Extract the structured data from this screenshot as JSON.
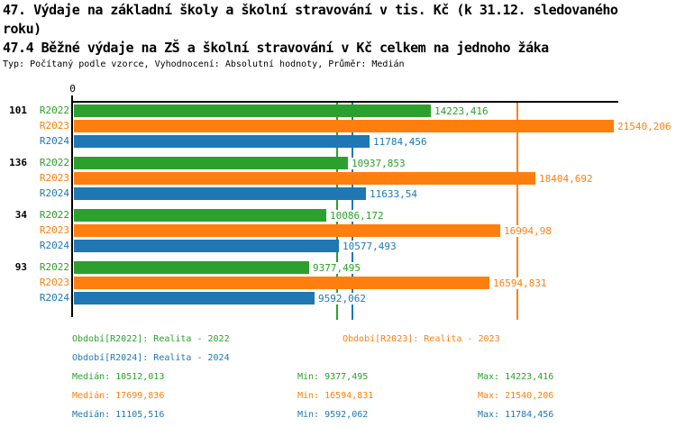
{
  "chart_data": {
    "type": "bar",
    "orientation": "horizontal",
    "title": "47. Výdaje na základní školy a školní stravování v tis. Kč (k 31.12. sledovaného roku)",
    "title_line1": "47. Výdaje na základní školy a školní stravování v tis. Kč (k 31.12. sledovaného",
    "title_line2": "roku)",
    "subtitle": "47.4 Běžné výdaje na ZŠ a školní stravování v Kč celkem na jednoho žáka",
    "meta": "Typ: Počítaný podle vzorce, Vyhodnocení: Absolutní hodnoty, Průměr: Medián",
    "axis": {
      "zero_tick": "0",
      "x_min": 0,
      "x_max_approx": 21800,
      "grid": false
    },
    "legend_position": "bottom",
    "series": [
      {
        "name": "R2022",
        "color": "#2CA02C",
        "median": 10512.013,
        "min": 9377.495,
        "max": 14223.416
      },
      {
        "name": "R2023",
        "color": "#FF7F0E",
        "median": 17699.836,
        "min": 16594.831,
        "max": 21540.206
      },
      {
        "name": "R2024",
        "color": "#1F77B4",
        "median": 11105.516,
        "min": 9592.062,
        "max": 11784.456
      }
    ],
    "groups": [
      {
        "label": "101",
        "values": [
          14223.416,
          21540.206,
          11784.456
        ],
        "value_labels": [
          "14223,416",
          "21540,206",
          "11784,456"
        ]
      },
      {
        "label": "136",
        "values": [
          10937.853,
          18404.692,
          11633.54
        ],
        "value_labels": [
          "10937,853",
          "18404,692",
          "11633,54"
        ]
      },
      {
        "label": "34",
        "values": [
          10086.172,
          16994.98,
          10577.493
        ],
        "value_labels": [
          "10086,172",
          "16994,98",
          "10577,493"
        ]
      },
      {
        "label": "93",
        "values": [
          9377.495,
          16594.831,
          9592.062
        ],
        "value_labels": [
          "9377,495",
          "16594,831",
          "9592,062"
        ]
      }
    ]
  },
  "legend": {
    "period_r2022": "Období[R2022]: Realita - 2022",
    "period_r2023": "Období[R2023]: Realita - 2023",
    "period_r2024": "Období[R2024]: Realita - 2024",
    "stats": [
      {
        "median": "Medián: 10512,013",
        "min": "Min: 9377,495",
        "max": "Max: 14223,416"
      },
      {
        "median": "Medián: 17699,836",
        "min": "Min: 16594,831",
        "max": "Max: 21540,206"
      },
      {
        "median": "Medián: 11105,516",
        "min": "Min: 9592,062",
        "max": "Max: 11784,456"
      }
    ]
  }
}
